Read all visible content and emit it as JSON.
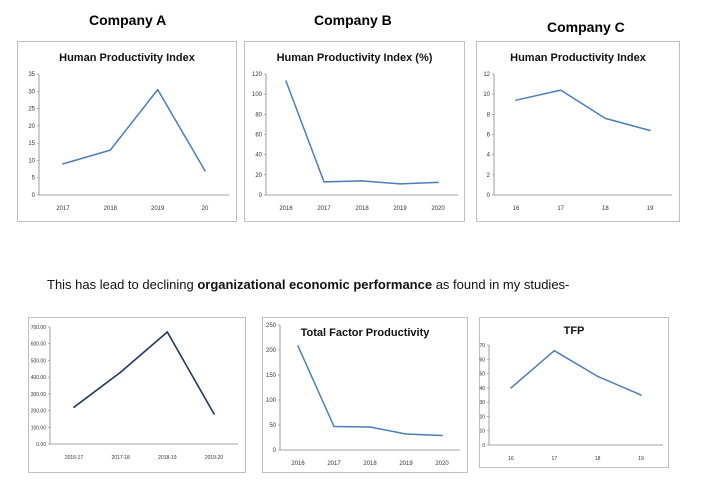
{
  "headings": {
    "a": "Company A",
    "b": "Company B",
    "c": "Company C"
  },
  "caption": {
    "before": "This has lead to declining ",
    "bold": "organizational economic performance",
    "after": " as found in my studies-"
  },
  "colors": {
    "line_blue": "#4a7ebb",
    "line_navy": "#1f3864",
    "frame": "#bfbfbf",
    "axis": "#868686"
  },
  "chart_data": [
    {
      "id": "a",
      "type": "line",
      "title": "Human Productivity Index",
      "categories": [
        "2017",
        "2018",
        "2019",
        "20"
      ],
      "values": [
        9,
        13,
        30.5,
        7
      ],
      "ylim": [
        0,
        35
      ],
      "yticks": [
        "0",
        "5",
        "10",
        "15",
        "20",
        "25",
        "30",
        "35"
      ],
      "grid": false,
      "legend": "none",
      "color": "#4a7ebb"
    },
    {
      "id": "b",
      "type": "line",
      "title": "Human Productivity Index (%)",
      "categories": [
        "2016",
        "2017",
        "2018",
        "2019",
        "2020"
      ],
      "values": [
        113,
        13,
        14,
        11,
        12.5
      ],
      "ylim": [
        0,
        120
      ],
      "yticks": [
        "0",
        "20",
        "40",
        "60",
        "80",
        "100",
        "120"
      ],
      "grid": false,
      "legend": "none",
      "color": "#4a7ebb"
    },
    {
      "id": "c",
      "type": "line",
      "title": "Human Productivity Index",
      "categories": [
        "16",
        "17",
        "18",
        "19"
      ],
      "values": [
        9.4,
        10.4,
        7.6,
        6.4
      ],
      "ylim": [
        0,
        12
      ],
      "yticks": [
        "0",
        "2",
        "4",
        "6",
        "8",
        "10",
        "12"
      ],
      "grid": false,
      "legend": "none",
      "color": "#4a7ebb"
    },
    {
      "id": "d",
      "type": "line",
      "title": "",
      "categories": [
        "2016-17",
        "2017-18",
        "2018-19",
        "2019-20"
      ],
      "values": [
        220,
        430,
        670,
        180
      ],
      "ylim": [
        0,
        700
      ],
      "yticks": [
        "0.00",
        "100.00",
        "200.00",
        "300.00",
        "400.00",
        "500.00",
        "600.00",
        "700.00"
      ],
      "grid": false,
      "legend": "none",
      "color": "#1f3864"
    },
    {
      "id": "e",
      "type": "line",
      "title": "Total Factor Productivity",
      "categories": [
        "2016",
        "2017",
        "2018",
        "2019",
        "2020"
      ],
      "values": [
        208,
        47,
        46,
        32,
        29
      ],
      "ylim": [
        0,
        250
      ],
      "yticks": [
        "0",
        "50",
        "100",
        "150",
        "200",
        "250"
      ],
      "grid": false,
      "legend": "none",
      "color": "#4a7ebb"
    },
    {
      "id": "f",
      "type": "line",
      "title": "TFP",
      "categories": [
        "16",
        "17",
        "18",
        "19"
      ],
      "values": [
        40,
        66,
        48,
        35
      ],
      "ylim": [
        0,
        70
      ],
      "yticks": [
        "0",
        "10",
        "20",
        "30",
        "40",
        "50",
        "60",
        "70"
      ],
      "grid": false,
      "legend": "none",
      "color": "#4a7ebb"
    }
  ]
}
